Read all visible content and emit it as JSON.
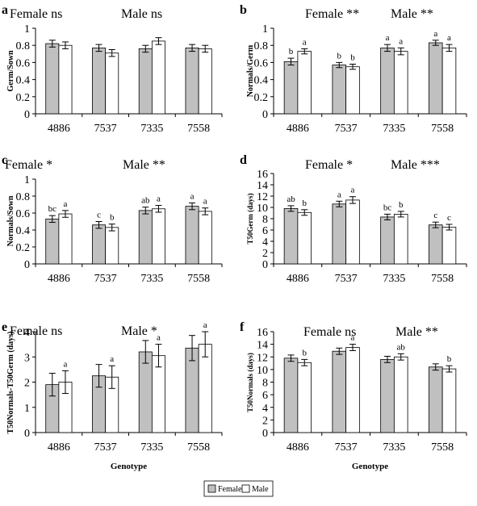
{
  "chart_data": [
    {
      "type": "bar",
      "panel_label": "a",
      "header": [
        {
          "text": "Female ns"
        },
        {
          "text": "Male ns"
        }
      ],
      "ylabel": "Germ/Sown",
      "xlabel": "",
      "ylim": [
        0,
        1
      ],
      "ystep": 0.2,
      "yticks": [
        "0",
        "0.2",
        "0.4",
        "0.6",
        "0.8",
        "1"
      ],
      "categories": [
        "4886",
        "7537",
        "7335",
        "7558"
      ],
      "series": [
        {
          "name": "Female",
          "values": [
            0.82,
            0.77,
            0.76,
            0.77
          ],
          "errors": [
            0.04,
            0.04,
            0.04,
            0.04
          ],
          "letters": [
            "",
            "",
            "",
            ""
          ]
        },
        {
          "name": "Male",
          "values": [
            0.8,
            0.71,
            0.85,
            0.76
          ],
          "errors": [
            0.04,
            0.04,
            0.04,
            0.04
          ],
          "letters": [
            "",
            "",
            "",
            ""
          ]
        }
      ]
    },
    {
      "type": "bar",
      "panel_label": "b",
      "header": [
        {
          "text": "Female **"
        },
        {
          "text": "Male **"
        }
      ],
      "ylabel": "Normals/Germ",
      "xlabel": "",
      "ylim": [
        0,
        1
      ],
      "ystep": 0.2,
      "yticks": [
        "0",
        "0.2",
        "0.4",
        "0.6",
        "0.8",
        "1"
      ],
      "categories": [
        "4886",
        "7537",
        "7335",
        "7558"
      ],
      "series": [
        {
          "name": "Female",
          "values": [
            0.61,
            0.57,
            0.77,
            0.83
          ],
          "errors": [
            0.04,
            0.03,
            0.04,
            0.03
          ],
          "letters": [
            "b",
            "b",
            "a",
            "a"
          ]
        },
        {
          "name": "Male",
          "values": [
            0.73,
            0.55,
            0.73,
            0.77
          ],
          "errors": [
            0.03,
            0.03,
            0.04,
            0.04
          ],
          "letters": [
            "a",
            "b",
            "a",
            "a"
          ]
        }
      ]
    },
    {
      "type": "bar",
      "panel_label": "c",
      "header": [
        {
          "text": "Female *"
        },
        {
          "text": "Male **"
        }
      ],
      "ylabel": "Normals/Sown",
      "xlabel": "",
      "ylim": [
        0,
        1
      ],
      "ystep": 0.2,
      "yticks": [
        "0",
        "0.2",
        "0.4",
        "0.6",
        "0.8",
        "1"
      ],
      "categories": [
        "4886",
        "7537",
        "7335",
        "7558"
      ],
      "series": [
        {
          "name": "Female",
          "values": [
            0.53,
            0.46,
            0.63,
            0.68
          ],
          "errors": [
            0.04,
            0.04,
            0.04,
            0.04
          ],
          "letters": [
            "bc",
            "c",
            "ab",
            "a"
          ]
        },
        {
          "name": "Male",
          "values": [
            0.59,
            0.43,
            0.65,
            0.62
          ],
          "errors": [
            0.04,
            0.04,
            0.04,
            0.04
          ],
          "letters": [
            "a",
            "b",
            "a",
            "a"
          ]
        }
      ]
    },
    {
      "type": "bar",
      "panel_label": "d",
      "header": [
        {
          "text": "Female *"
        },
        {
          "text": "Male ***"
        }
      ],
      "ylabel": "T50Germ (days)",
      "xlabel": "",
      "ylim": [
        0,
        16
      ],
      "ystep": 2,
      "yticks": [
        "0",
        "2",
        "4",
        "6",
        "8",
        "10",
        "12",
        "14",
        "16"
      ],
      "categories": [
        "4886",
        "7537",
        "7335",
        "7558"
      ],
      "series": [
        {
          "name": "Female",
          "values": [
            9.8,
            10.6,
            8.3,
            6.9
          ],
          "errors": [
            0.5,
            0.5,
            0.5,
            0.5
          ],
          "letters": [
            "ab",
            "a",
            "bc",
            "c"
          ]
        },
        {
          "name": "Male",
          "values": [
            9.1,
            11.3,
            8.8,
            6.5
          ],
          "errors": [
            0.5,
            0.6,
            0.5,
            0.5
          ],
          "letters": [
            "b",
            "a",
            "b",
            "c"
          ]
        }
      ]
    },
    {
      "type": "bar",
      "panel_label": "e",
      "header": [
        {
          "text": "Female ns"
        },
        {
          "text": "Male *"
        }
      ],
      "ylabel": "T50Normals-T50Germ (days)",
      "xlabel": "Genotype",
      "ylim": [
        0,
        4
      ],
      "ystep": 1,
      "yticks": [
        "0",
        "1",
        "2",
        "3",
        "4"
      ],
      "categories": [
        "4886",
        "7537",
        "7335",
        "7558"
      ],
      "series": [
        {
          "name": "Female",
          "values": [
            1.9,
            2.25,
            3.2,
            3.35
          ],
          "errors": [
            0.45,
            0.45,
            0.45,
            0.5
          ],
          "letters": [
            "",
            "",
            "",
            ""
          ]
        },
        {
          "name": "Male",
          "values": [
            2.0,
            2.2,
            3.05,
            3.5
          ],
          "errors": [
            0.45,
            0.45,
            0.45,
            0.5
          ],
          "letters": [
            "a",
            "a",
            "a",
            "a"
          ]
        }
      ]
    },
    {
      "type": "bar",
      "panel_label": "f",
      "header": [
        {
          "text": "Female ns"
        },
        {
          "text": "Male **"
        }
      ],
      "ylabel": "T50Normals (days)",
      "xlabel": "Genotype",
      "ylim": [
        0,
        16
      ],
      "ystep": 2,
      "yticks": [
        "0",
        "2",
        "4",
        "6",
        "8",
        "10",
        "12",
        "14",
        "16"
      ],
      "categories": [
        "4886",
        "7537",
        "7335",
        "7558"
      ],
      "series": [
        {
          "name": "Female",
          "values": [
            11.8,
            12.9,
            11.6,
            10.4
          ],
          "errors": [
            0.5,
            0.5,
            0.5,
            0.5
          ],
          "letters": [
            "",
            "",
            "",
            ""
          ]
        },
        {
          "name": "Male",
          "values": [
            11.1,
            13.5,
            12.0,
            10.1
          ],
          "errors": [
            0.5,
            0.5,
            0.5,
            0.5
          ],
          "letters": [
            "b",
            "a",
            "ab",
            "b"
          ]
        }
      ]
    }
  ],
  "legend": {
    "placement": "bottom-center",
    "entries": [
      {
        "label": "Female",
        "color": "#c0c0c0"
      },
      {
        "label": "Male",
        "color": "#ffffff"
      }
    ]
  },
  "colors": {
    "female": "#c0c0c0",
    "male": "#ffffff",
    "stroke": "#000000"
  }
}
